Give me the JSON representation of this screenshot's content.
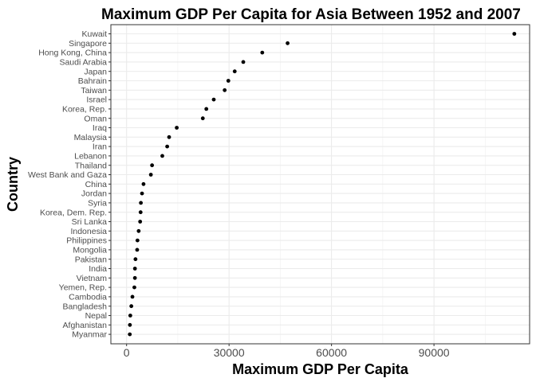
{
  "chart_data": {
    "type": "scatter",
    "title": "Maximum GDP Per Capita for Asia Between 1952 and 2007",
    "xlabel": "Maximum GDP Per Capita",
    "ylabel": "Country",
    "xlim": [
      -4600,
      118000
    ],
    "xticks": [
      0,
      30000,
      60000,
      90000
    ],
    "xtick_labels": [
      "0",
      "30000",
      "60000",
      "90000"
    ],
    "grid": true,
    "legend": "none",
    "point_color": "#000000",
    "categories": [
      "Kuwait",
      "Singapore",
      "Hong Kong, China",
      "Saudi Arabia",
      "Japan",
      "Bahrain",
      "Taiwan",
      "Israel",
      "Korea, Rep.",
      "Oman",
      "Iraq",
      "Malaysia",
      "Iran",
      "Lebanon",
      "Thailand",
      "West Bank and Gaza",
      "China",
      "Jordan",
      "Syria",
      "Korea, Dem. Rep.",
      "Sri Lanka",
      "Indonesia",
      "Philippines",
      "Mongolia",
      "Pakistan",
      "India",
      "Vietnam",
      "Yemen, Rep.",
      "Cambodia",
      "Bangladesh",
      "Nepal",
      "Afghanistan",
      "Myanmar"
    ],
    "values": [
      113523,
      47143,
      39725,
      34168,
      31656,
      29796,
      28718,
      25523,
      23348,
      22316,
      14688,
      12452,
      11889,
      10461,
      7458,
      7110,
      4959,
      4520,
      4185,
      4106,
      3970,
      3541,
      3190,
      3096,
      2606,
      2452,
      2442,
      2281,
      1713,
      1391,
      1091,
      978,
      944
    ]
  }
}
